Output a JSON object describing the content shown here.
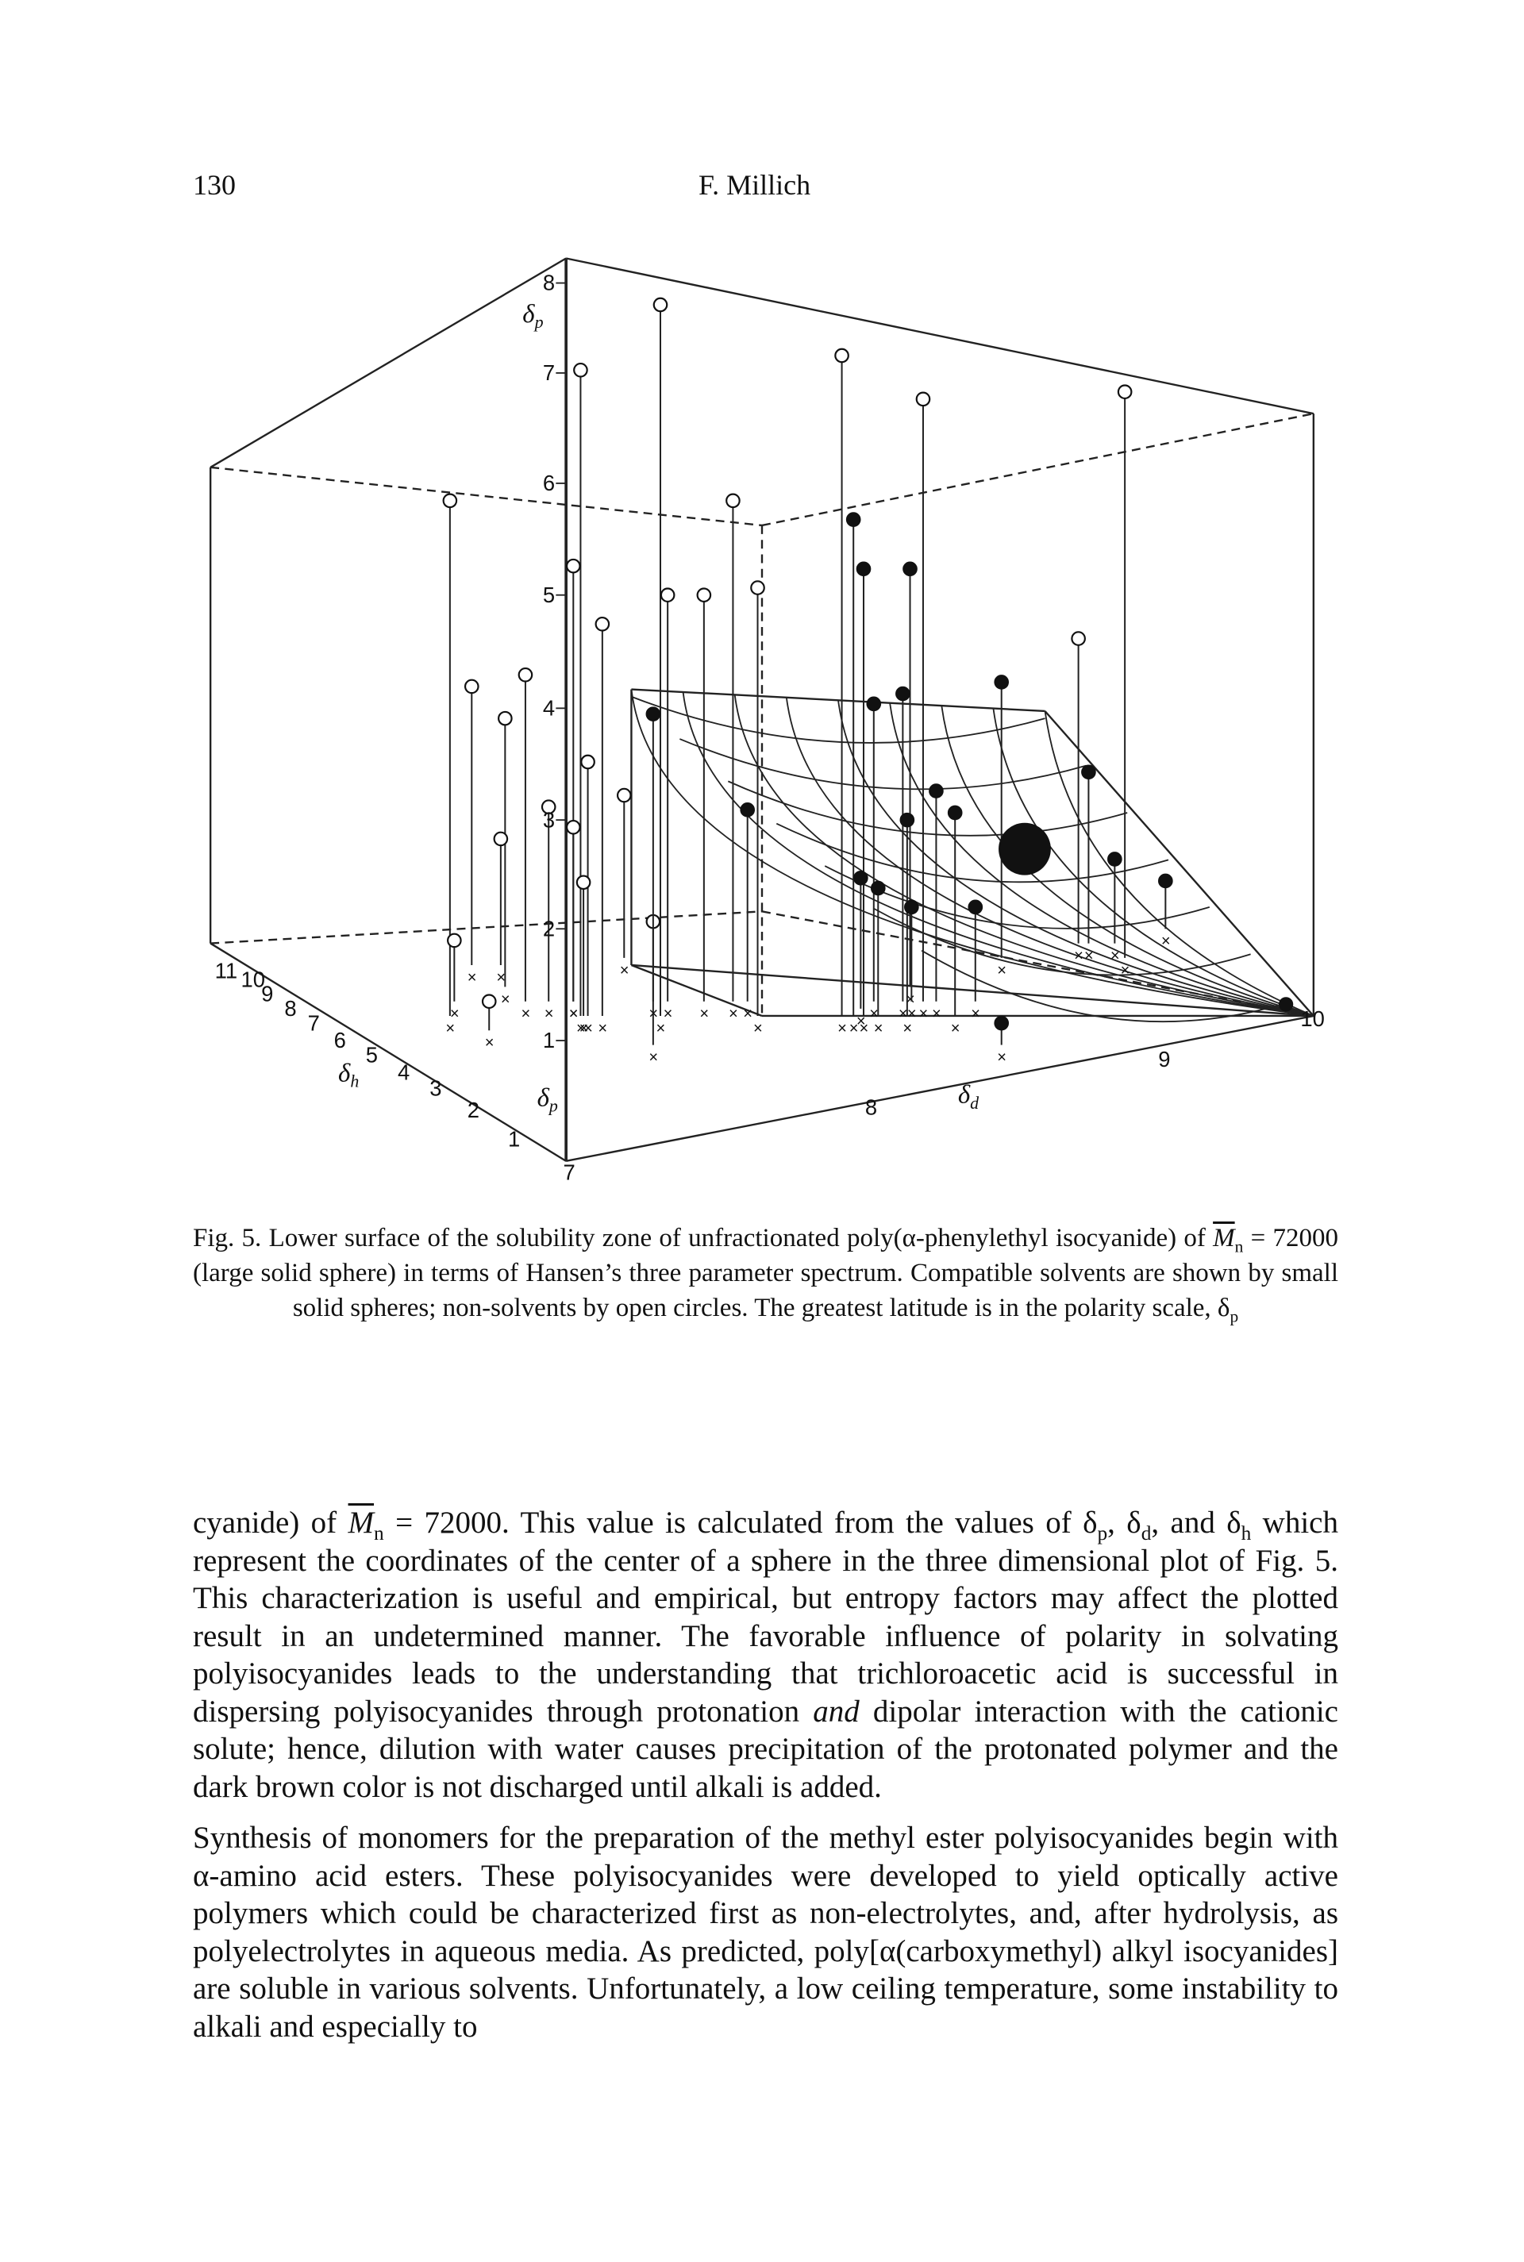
{
  "header": {
    "page_number": "130",
    "author": "F. Millich"
  },
  "figure": {
    "axes": {
      "dp": {
        "symbol": "δ",
        "subscript": "p",
        "ticks": [
          "1",
          "2",
          "3",
          "4",
          "5",
          "6",
          "7",
          "8"
        ]
      },
      "dh": {
        "symbol": "δ",
        "subscript": "h",
        "ticks": [
          "1",
          "2",
          "3",
          "4",
          "5",
          "6",
          "7",
          "8",
          "9",
          "10",
          "11"
        ]
      },
      "dd": {
        "symbol": "δ",
        "subscript": "d",
        "ticks": [
          "7",
          "8",
          "9",
          "10"
        ]
      }
    },
    "caption": [
      "Fig. 5. Lower surface of the solubility zone of unfractionated poly(α-phenylethyl isocyanide) of ",
      "M",
      "n",
      " = 72000 (large solid sphere) in terms of Hansen’s three parameter spectrum. Compatible solvents are shown by small solid spheres; non-solvents by open circles. The greatest latitude is in the polarity scale, δ",
      "p"
    ]
  },
  "body": {
    "paragraphs": [
      [
        "cyanide) of ",
        "M",
        "n",
        " = 72000. This value is calculated from the values of δ",
        "p",
        ", δ",
        "d",
        ", and δ",
        "h",
        " which represent the coordinates of the center of a sphere in the three dimensional plot of Fig. 5. This characterization is useful and empirical, but entropy factors may affect the plotted result in an undetermined manner. The favorable influence of polarity in solvating polyisocyanides leads to the understanding that trichloroacetic acid is successful in dispersing polyisocyanides through protonation ",
        "and",
        " dipolar interaction with the cationic solute; hence, dilution with water causes precipitation of the protonated polymer and the dark brown color is not discharged until alkali is added."
      ],
      [
        "Synthesis of monomers for the preparation of the methyl ester polyisocyanides begin with α-amino acid esters. These polyisocyanides were developed to yield optically active polymers which could be characterized first as non-electrolytes, and, after hydrolysis, as polyelectrolytes in aqueous media. As predicted, poly[α(carboxymethyl) alkyl isocyanides] are soluble in various solvents. Unfortunately, a low ceiling temperature, some instability to alkali and especially to"
      ]
    ]
  }
}
